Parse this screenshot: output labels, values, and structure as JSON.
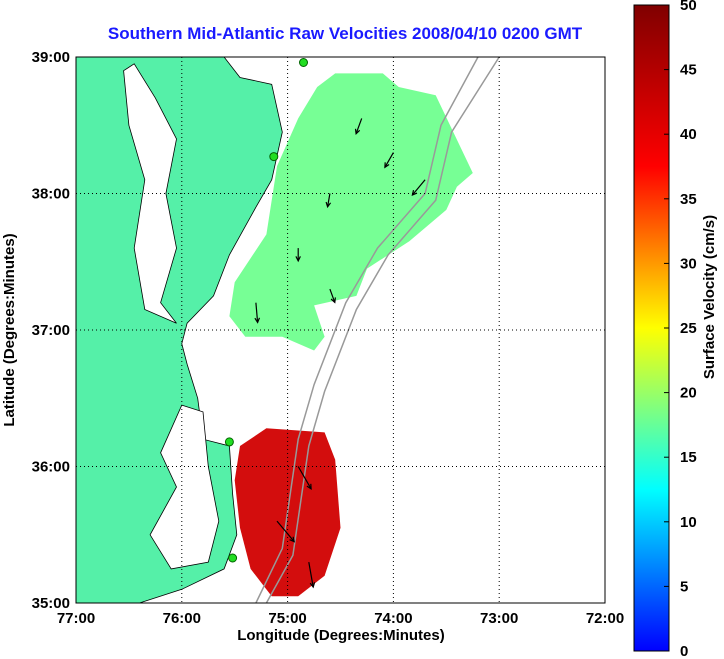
{
  "chart_data": {
    "type": "map",
    "title": "Southern Mid-Atlantic Raw Velocities 2008/04/10 0200 GMT",
    "xlabel": "Longitude (Degrees:Minutes)",
    "ylabel": "Latitude (Degrees:Minutes)",
    "xlim": [
      -77.0,
      -72.0
    ],
    "ylim": [
      35.0,
      39.0
    ],
    "x_ticks": [
      {
        "value": -77.0,
        "label": "77:00"
      },
      {
        "value": -76.0,
        "label": "76:00"
      },
      {
        "value": -75.0,
        "label": "75:00"
      },
      {
        "value": -74.0,
        "label": "74:00"
      },
      {
        "value": -73.0,
        "label": "73:00"
      },
      {
        "value": -72.0,
        "label": "72:00"
      }
    ],
    "y_ticks": [
      {
        "value": 35.0,
        "label": "35:00"
      },
      {
        "value": 36.0,
        "label": "36:00"
      },
      {
        "value": 37.0,
        "label": "37:00"
      },
      {
        "value": 38.0,
        "label": "38:00"
      },
      {
        "value": 39.0,
        "label": "39:00"
      }
    ],
    "grid": true,
    "colorbar": {
      "label": "Surface Velocity (cm/s)",
      "min": 0,
      "max": 50,
      "ticks": [
        0,
        5,
        10,
        15,
        20,
        25,
        30,
        35,
        40,
        45,
        50
      ],
      "colormap": "jet"
    },
    "land_color": "#55f0a8",
    "stations": [
      {
        "lon": -74.85,
        "lat": 38.96
      },
      {
        "lon": -75.13,
        "lat": 38.27
      },
      {
        "lon": -75.55,
        "lat": 36.18
      },
      {
        "lon": -75.52,
        "lat": 35.33
      }
    ],
    "regions": [
      {
        "name": "northern field",
        "polygon": [
          [
            -74.55,
            38.88
          ],
          [
            -74.1,
            38.88
          ],
          [
            -73.95,
            38.78
          ],
          [
            -73.6,
            38.72
          ],
          [
            -73.25,
            38.15
          ],
          [
            -73.4,
            38.05
          ],
          [
            -73.5,
            37.88
          ],
          [
            -73.85,
            37.65
          ],
          [
            -74.25,
            37.45
          ],
          [
            -74.35,
            37.25
          ],
          [
            -74.75,
            37.18
          ],
          [
            -74.65,
            36.95
          ],
          [
            -74.75,
            36.85
          ],
          [
            -75.05,
            36.95
          ],
          [
            -75.4,
            36.95
          ],
          [
            -75.55,
            37.1
          ],
          [
            -75.5,
            37.35
          ],
          [
            -75.2,
            37.7
          ],
          [
            -75.1,
            38.2
          ],
          [
            -74.9,
            38.55
          ],
          [
            -74.72,
            38.78
          ]
        ],
        "velocity_cms": 18
      },
      {
        "name": "southern field",
        "polygon": [
          [
            -75.2,
            36.28
          ],
          [
            -74.65,
            36.25
          ],
          [
            -74.55,
            36.05
          ],
          [
            -74.5,
            35.55
          ],
          [
            -74.65,
            35.2
          ],
          [
            -74.9,
            35.05
          ],
          [
            -75.15,
            35.05
          ],
          [
            -75.35,
            35.25
          ],
          [
            -75.45,
            35.55
          ],
          [
            -75.5,
            35.9
          ],
          [
            -75.45,
            36.15
          ]
        ],
        "velocity_cms": 42
      }
    ],
    "velocity_samples": [
      {
        "lon": -74.3,
        "lat": 38.55,
        "speed": 18,
        "dir_deg": 200
      },
      {
        "lon": -74.0,
        "lat": 38.3,
        "speed": 20,
        "dir_deg": 210
      },
      {
        "lon": -73.7,
        "lat": 38.1,
        "speed": 28,
        "dir_deg": 220
      },
      {
        "lon": -74.6,
        "lat": 38.0,
        "speed": 10,
        "dir_deg": 190
      },
      {
        "lon": -74.9,
        "lat": 37.6,
        "speed": 8,
        "dir_deg": 180
      },
      {
        "lon": -75.3,
        "lat": 37.2,
        "speed": 28,
        "dir_deg": 175
      },
      {
        "lon": -74.6,
        "lat": 37.3,
        "speed": 12,
        "dir_deg": 160
      },
      {
        "lon": -74.9,
        "lat": 36.0,
        "speed": 45,
        "dir_deg": 150
      },
      {
        "lon": -75.1,
        "lat": 35.6,
        "speed": 48,
        "dir_deg": 140
      },
      {
        "lon": -74.8,
        "lat": 35.3,
        "speed": 44,
        "dir_deg": 170
      }
    ]
  }
}
